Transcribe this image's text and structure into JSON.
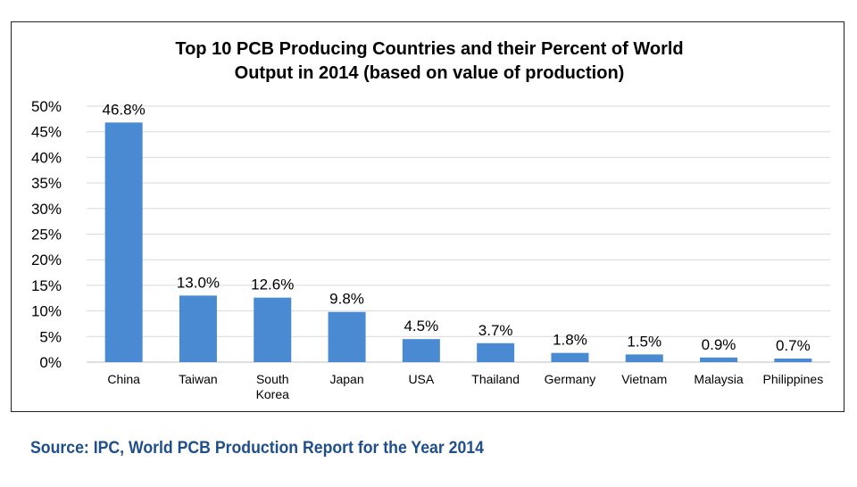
{
  "chart_data": {
    "type": "bar",
    "title": "Top 10 PCB Producing Countries and their Percent of World Output in 2014 (based on value of production)",
    "title_lines": [
      "Top 10 PCB Producing Countries and their Percent of World",
      "Output in 2014 (based on value of production)"
    ],
    "categories": [
      "China",
      "Taiwan",
      "South Korea",
      "Japan",
      "USA",
      "Thailand",
      "Germany",
      "Vietnam",
      "Malaysia",
      "Philippines"
    ],
    "category_lines": [
      [
        "China"
      ],
      [
        "Taiwan"
      ],
      [
        "South",
        "Korea"
      ],
      [
        "Japan"
      ],
      [
        "USA"
      ],
      [
        "Thailand"
      ],
      [
        "Germany"
      ],
      [
        "Vietnam"
      ],
      [
        "Malaysia"
      ],
      [
        "Philippines"
      ]
    ],
    "values": [
      46.8,
      13.0,
      12.6,
      9.8,
      4.5,
      3.7,
      1.8,
      1.5,
      0.9,
      0.7
    ],
    "data_labels": [
      "46.8%",
      "13.0%",
      "12.6%",
      "9.8%",
      "4.5%",
      "3.7%",
      "1.8%",
      "1.5%",
      "0.9%",
      "0.7%"
    ],
    "yticks": [
      0,
      5,
      10,
      15,
      20,
      25,
      30,
      35,
      40,
      45,
      50
    ],
    "ytick_labels": [
      "0%",
      "5%",
      "10%",
      "15%",
      "20%",
      "25%",
      "30%",
      "35%",
      "40%",
      "45%",
      "50%"
    ],
    "ylim": [
      0,
      50
    ],
    "xlabel": "",
    "ylabel": "",
    "grid": true,
    "legend": "none",
    "colors": {
      "bar": "#4a8ad3",
      "grid": "#d9d9d9",
      "axis": "#bfbfbf",
      "text": "#000000"
    }
  },
  "source": {
    "text": "Source: IPC, World PCB Production Report for the Year 2014",
    "color": "#1f4e8c"
  }
}
